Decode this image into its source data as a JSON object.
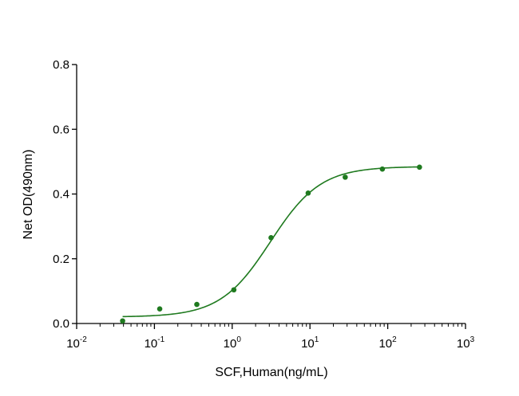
{
  "chart_data": {
    "type": "scatter",
    "xlabel": "SCF,Human(ng/mL)",
    "ylabel": "Net OD(490nm)",
    "x_scale": "log10",
    "xlim": [
      0.01,
      1000
    ],
    "ylim": [
      0,
      0.8
    ],
    "x_ticks": [
      {
        "base": "10",
        "exp": "-2",
        "value": 0.01
      },
      {
        "base": "10",
        "exp": "-1",
        "value": 0.1
      },
      {
        "base": "10",
        "exp": "0",
        "value": 1
      },
      {
        "base": "10",
        "exp": "1",
        "value": 10
      },
      {
        "base": "10",
        "exp": "2",
        "value": 100
      },
      {
        "base": "10",
        "exp": "3",
        "value": 1000
      }
    ],
    "y_ticks": [
      "0.0",
      "0.2",
      "0.4",
      "0.6",
      "0.8"
    ],
    "y_tick_values": [
      0,
      0.2,
      0.4,
      0.6,
      0.8
    ],
    "color": "#1f7a1f",
    "series": [
      {
        "x": [
          0.039,
          0.117,
          0.351,
          1.05,
          3.16,
          9.48,
          28.4,
          85.3,
          256
        ],
        "y": [
          0.008,
          0.045,
          0.059,
          0.104,
          0.265,
          0.403,
          0.452,
          0.477,
          0.483
        ]
      }
    ],
    "fit": {
      "model": "4PL",
      "bottom": 0.02,
      "top": 0.485,
      "ec50": 3.1,
      "hill": 1.35,
      "x_range": [
        0.039,
        256
      ]
    },
    "grid": false,
    "legend": "none"
  }
}
